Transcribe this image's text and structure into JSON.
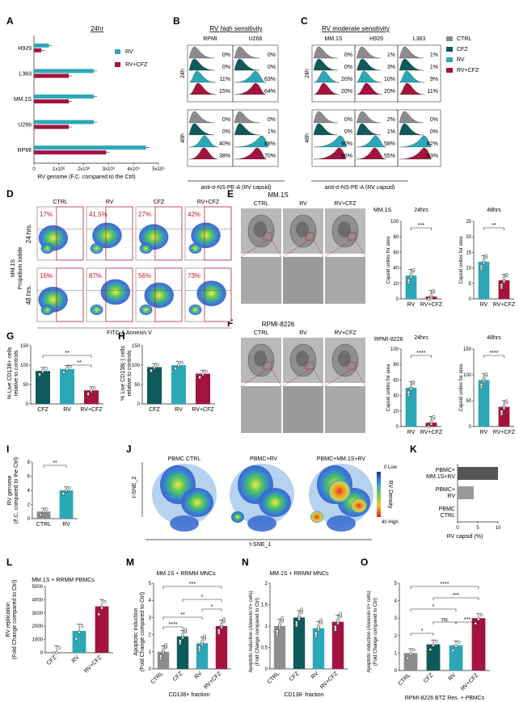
{
  "colors": {
    "teal_dark": "#0e5a5a",
    "teal": "#2ba7b8",
    "maroon": "#a3133e",
    "grey": "#8c8c8c",
    "light_grey": "#bdbdbd",
    "red_text": "#c4122f"
  },
  "panels": {
    "A": {
      "letter": "A",
      "timepoint": "24hr",
      "xlabel": "RV genome (F.C. compared to the Ctrl)"
    },
    "B": {
      "letter": "B",
      "title": "RV high sensitivity",
      "xlabel": "anti-σ-NS-PE-A (RV capsid)"
    },
    "C": {
      "letter": "C",
      "title": "RV moderate sensitivity",
      "xlabel": "anti-σ-NS-PE-A (RV capsid)"
    },
    "D": {
      "letter": "D",
      "ylabel_line1": "MM.1S",
      "ylabel_line2": "Propidium Iodide",
      "xlabel": "FITC-A Annexin V"
    },
    "E": {
      "letter": "E",
      "title": "MM.1S",
      "cell": "MM.1S"
    },
    "F": {
      "letter": "F",
      "title": "RPMI-8226",
      "cell": "RPMI-8226"
    },
    "G": {
      "letter": "G",
      "ylabel_line1": "% Live CD138+ cells",
      "ylabel_line2": "relative to controls"
    },
    "H": {
      "letter": "H",
      "ylabel_line1": "% Live CD138(-) cells",
      "ylabel_line2": "relative to controls"
    },
    "I": {
      "letter": "I",
      "ylabel_line1": "RV genome",
      "ylabel_line2": "(F.C. compared to the Ctrl)"
    },
    "J": {
      "letter": "J",
      "titles": [
        "PBMC CTRL",
        "PBMC+RV",
        "PBMC+MM.1S+RV"
      ],
      "y_axis": "t-SNE_2",
      "x_axis": "t-SNE_1",
      "scale_low": "0 Low",
      "scale_high": "40 High",
      "scale_label": "RV Density"
    },
    "K": {
      "letter": "K",
      "xlabel": "RV capsid (%)"
    },
    "L": {
      "letter": "L",
      "title": "MM.1S + RRMM PBMCs",
      "ylabel_line1": "RV replication",
      "ylabel_line2": "(Fold Change compared to Ctrl)"
    },
    "M": {
      "letter": "M",
      "title": "MM.1S + RRMM MNCs",
      "ylabel_line1": "Apoptotic induction",
      "ylabel_line2": "(Fold  Change compared to Ctrl)",
      "xlabel": "CD138+ fraction"
    },
    "N": {
      "letter": "N",
      "title": "MM.1S + RRMM MNCs",
      "ylabel_line1": "Apoptotic induction (Annexin-V+ cells)",
      "ylabel_line2": "(Fold  Change compared to Ctrl)",
      "xlabel": "CD138- fraction"
    },
    "O": {
      "letter": "O",
      "ylabel_line1": "Apoptotic induction (Annexin-V+ cells)",
      "ylabel_line2": "(Fold  Change compared to Ctrl)",
      "xlabel": "RPMI-8226 BTZ Res. + PBMCs"
    }
  },
  "histogram_rows": [
    "24h",
    "48h"
  ],
  "histogram_legend": [
    "CTRL",
    "CFZ",
    "RV",
    "RV+CFZ"
  ],
  "em_columns": [
    "CTRL",
    "RV",
    "RV+CFZ"
  ],
  "dotplot_cols": [
    "CTRL",
    "RV",
    "CFZ",
    "RV+CFZ"
  ],
  "dotplot_rows": [
    "24 hrs.",
    "48 hrs."
  ],
  "chart_data": [
    {
      "id": "A",
      "type": "bar",
      "orientation": "horizontal",
      "categories": [
        "H929",
        "L363",
        "MM.1S",
        "U266",
        "RPMI"
      ],
      "series": [
        {
          "name": "RV",
          "values": [
            600000,
            2400000,
            2400000,
            2400000,
            4500000
          ]
        },
        {
          "name": "RV+CFZ",
          "values": [
            300000,
            1400000,
            1400000,
            1400000,
            2900000
          ]
        }
      ],
      "xticks": [
        0,
        1000000,
        2000000,
        3000000,
        4000000,
        5000000
      ],
      "xtick_labels": [
        "0",
        "1x10⁶",
        "2x10⁶",
        "3x10⁶",
        "4x10⁶",
        "5x10⁶"
      ],
      "xlim": [
        0,
        5000000
      ]
    },
    {
      "id": "B",
      "type": "histogram",
      "samples": [
        "RPMI",
        "U266"
      ],
      "percent": {
        "24h": {
          "RPMI": [
            "0%",
            "0%",
            "11%",
            "15%"
          ],
          "U266": [
            "0%",
            "0%",
            "63%",
            "64%"
          ]
        },
        "48h": {
          "RPMI": [
            "0%",
            "0%",
            "40%",
            "38%"
          ],
          "U266": [
            "0%",
            "1%",
            "88%",
            "70%"
          ]
        }
      }
    },
    {
      "id": "C",
      "type": "histogram",
      "samples": [
        "MM.1S",
        "H929",
        "L363"
      ],
      "percent": {
        "24h": {
          "MM.1S": [
            "0%",
            "0%",
            "20%",
            "20%"
          ],
          "H929": [
            "1%",
            "3%",
            "10%",
            "20%"
          ],
          "L363": [
            "1%",
            "1%",
            "9%",
            "11%"
          ]
        },
        "48h": {
          "MM.1S": [
            "0%",
            "0%",
            "90%",
            "86%"
          ],
          "H929": [
            "2%",
            "1%",
            "58%",
            "55%"
          ],
          "L363": [
            "0%",
            "0%",
            "82%",
            "83%"
          ]
        }
      }
    },
    {
      "id": "D",
      "type": "scatter",
      "percent": {
        "24 hrs.": [
          "17%",
          "41.5%",
          "27%",
          "42%"
        ],
        "48 hrs.": [
          "16%",
          "87%",
          "56%",
          "73%"
        ]
      }
    },
    {
      "id": "E1",
      "type": "bar",
      "title": "24hrs",
      "ylabel": "Capsid unites for area",
      "categories": [
        "RV",
        "RV+CFZ"
      ],
      "values": [
        30,
        3
      ],
      "ylim": [
        0,
        100
      ],
      "yticks": [
        0,
        20,
        40,
        60,
        80,
        100
      ],
      "significance": "***"
    },
    {
      "id": "E2",
      "type": "bar",
      "title": "48hrs",
      "ylabel": "Capsid unites for area",
      "categories": [
        "RV",
        "RV+CFZ"
      ],
      "values": [
        12,
        6
      ],
      "ylim": [
        0,
        25
      ],
      "yticks": [
        0,
        5,
        10,
        15,
        20,
        25
      ],
      "significance": "**"
    },
    {
      "id": "F1",
      "type": "bar",
      "title": "24hrs",
      "ylabel": "Capsid unites for area",
      "categories": [
        "RV",
        "RV+CFZ"
      ],
      "values": [
        50,
        5
      ],
      "ylim": [
        0,
        100
      ],
      "yticks": [
        0,
        20,
        40,
        60,
        80,
        100
      ],
      "significance": "****"
    },
    {
      "id": "F2",
      "type": "bar",
      "title": "48hrs",
      "ylabel": "Capsid unites for area",
      "categories": [
        "RV",
        "RV+CFZ"
      ],
      "values": [
        90,
        38
      ],
      "ylim": [
        0,
        150
      ],
      "yticks": [
        0,
        50,
        100,
        150
      ],
      "significance": "****"
    },
    {
      "id": "G",
      "type": "bar",
      "categories": [
        "CFZ",
        "RV",
        "RV+CFZ"
      ],
      "values": [
        85,
        90,
        35
      ],
      "ylim": [
        0,
        150
      ],
      "yticks": [
        0,
        50,
        100,
        150
      ],
      "significance": [
        "**",
        "**"
      ]
    },
    {
      "id": "H",
      "type": "bar",
      "categories": [
        "CFZ",
        "RV",
        "RV+CFZ"
      ],
      "values": [
        95,
        100,
        78
      ],
      "ylim": [
        0,
        150
      ],
      "yticks": [
        0,
        50,
        100,
        150
      ]
    },
    {
      "id": "I",
      "type": "bar",
      "categories": [
        "CTRL",
        "RV"
      ],
      "values": [
        1,
        4
      ],
      "ylim": [
        0,
        8
      ],
      "yticks": [
        0,
        2,
        4,
        6,
        8
      ],
      "significance": "**"
    },
    {
      "id": "K",
      "type": "bar",
      "orientation": "horizontal",
      "categories": [
        "PBMC+\nMM.1S+RV",
        "PBMC+\nRV",
        "PBMC\nCTRL"
      ],
      "values": [
        10,
        4,
        0
      ],
      "xlim": [
        0,
        10
      ],
      "xticks": [
        0,
        5,
        10
      ]
    },
    {
      "id": "L",
      "type": "bar",
      "categories": [
        "CFZ",
        "RV",
        "RV+CFZ"
      ],
      "values": [
        15,
        1650,
        3500
      ],
      "ylim": [
        0,
        5000
      ],
      "yticks": [
        0,
        1000,
        2000,
        3000,
        4000,
        5000
      ]
    },
    {
      "id": "M",
      "type": "bar",
      "categories": [
        "CTRL",
        "CFZ",
        "RV",
        "RV+CFZ"
      ],
      "values": [
        1,
        1.9,
        1.5,
        2.5
      ],
      "ylim": [
        0,
        5
      ],
      "yticks": [
        0,
        1,
        2,
        3,
        4,
        5
      ],
      "significance": [
        "****",
        "**",
        "***",
        "*",
        "*"
      ]
    },
    {
      "id": "N",
      "type": "bar",
      "categories": [
        "CTRL",
        "CFZ",
        "RV",
        "RV+CFZ"
      ],
      "values": [
        1,
        1.2,
        0.95,
        1.1
      ],
      "ylim": [
        0,
        2
      ],
      "yticks": [
        0.0,
        0.5,
        1.0,
        1.5,
        2.0
      ]
    },
    {
      "id": "O",
      "type": "bar",
      "categories": [
        "CTRL",
        "CFZ",
        "RV",
        "RV+CFZ"
      ],
      "values": [
        1,
        1.5,
        1.45,
        3
      ],
      "ylim": [
        0,
        5
      ],
      "yticks": [
        0,
        1,
        2,
        3,
        4,
        5
      ],
      "significance": [
        "****",
        "***",
        "*",
        "ns",
        "*",
        "***"
      ]
    }
  ]
}
